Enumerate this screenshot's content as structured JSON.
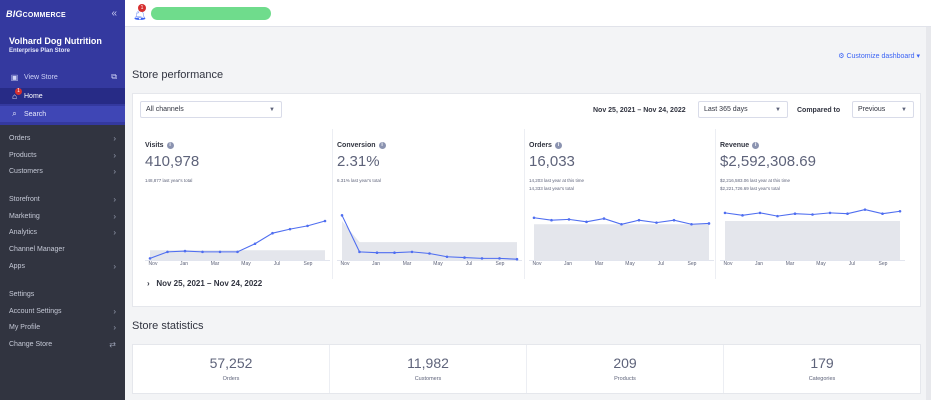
{
  "sidebar": {
    "logo": {
      "big": "BIG",
      "rest": "COMMERCE"
    },
    "collapse_icon": "double-chevron-left-icon",
    "store_name": "Volhard Dog Nutrition",
    "store_plan": "Enterprise Plan Store",
    "view_store": "View Store",
    "home": "Home",
    "home_badge": "1",
    "search": "Search",
    "groups": [
      [
        "Orders",
        "Products",
        "Customers"
      ],
      [
        "Storefront",
        "Marketing",
        "Analytics",
        "Channel Manager",
        "Apps"
      ],
      [
        "Settings",
        "Account Settings",
        "My Profile",
        "Change Store"
      ]
    ]
  },
  "topbar": {
    "bell_badge": "1"
  },
  "main": {
    "customize": "Customize dashboard",
    "perf_title": "Store performance",
    "channel_select": "All channels",
    "date_range": "Nov 25, 2021 – Nov 24, 2022",
    "period_select": "Last 365 days",
    "compared_label": "Compared to",
    "compared_select": "Previous",
    "metrics": [
      {
        "label": "Visits",
        "value": "410,978",
        "sub1": "148,877 last year's total",
        "sub2": ""
      },
      {
        "label": "Conversion",
        "value": "2.31%",
        "sub1": "6.31% last year's total",
        "sub2": ""
      },
      {
        "label": "Orders",
        "value": "16,033",
        "sub1": "14,203 last year at this time",
        "sub2": "14,333 last year's total"
      },
      {
        "label": "Revenue",
        "value": "$2,592,308.69",
        "sub1": "$2,216,583.06 last year at this time",
        "sub2": "$2,221,726.69 last year's total"
      }
    ],
    "months": [
      "Nov",
      "Jan",
      "Mar",
      "May",
      "Jul",
      "Sep"
    ],
    "expand_range": "Nov 25, 2021 – Nov 24, 2022",
    "stats_title": "Store statistics",
    "stats": [
      {
        "value": "57,252",
        "label": "Orders"
      },
      {
        "value": "11,982",
        "label": "Customers"
      },
      {
        "value": "209",
        "label": "Products"
      },
      {
        "value": "179",
        "label": "Categories"
      }
    ]
  },
  "colors": {
    "accent": "#3c64f4",
    "sidebar_top": "#34399f",
    "sidebar": "#313440",
    "line": "#4f6ef0",
    "area": "#e4e6ec"
  },
  "chart_data": [
    {
      "type": "line",
      "title": "Visits",
      "series": [
        {
          "values": [
            2,
            10,
            11,
            10,
            10,
            10,
            20,
            33,
            38,
            42,
            48
          ]
        },
        {
          "values": [
            12,
            12,
            12,
            12,
            12,
            12,
            12,
            12,
            12,
            12,
            12
          ]
        }
      ]
    },
    {
      "type": "line",
      "title": "Conversion",
      "series": [
        {
          "values": [
            55,
            10,
            9,
            9,
            10,
            8,
            4,
            3,
            2,
            2,
            1
          ]
        },
        {
          "values": [
            48,
            22,
            22,
            22,
            22,
            22,
            22,
            22,
            22,
            22,
            22
          ]
        }
      ]
    },
    {
      "type": "line",
      "title": "Orders",
      "series": [
        {
          "values": [
            52,
            49,
            50,
            47,
            51,
            44,
            49,
            46,
            49,
            44,
            45
          ]
        },
        {
          "values": [
            44,
            44,
            44,
            44,
            44,
            44,
            44,
            44,
            44,
            44,
            44
          ]
        }
      ]
    },
    {
      "type": "line",
      "title": "Revenue",
      "series": [
        {
          "values": [
            58,
            55,
            58,
            54,
            57,
            56,
            58,
            57,
            62,
            57,
            60
          ]
        },
        {
          "values": [
            48,
            48,
            48,
            48,
            48,
            48,
            48,
            48,
            48,
            48,
            48
          ]
        }
      ]
    }
  ]
}
